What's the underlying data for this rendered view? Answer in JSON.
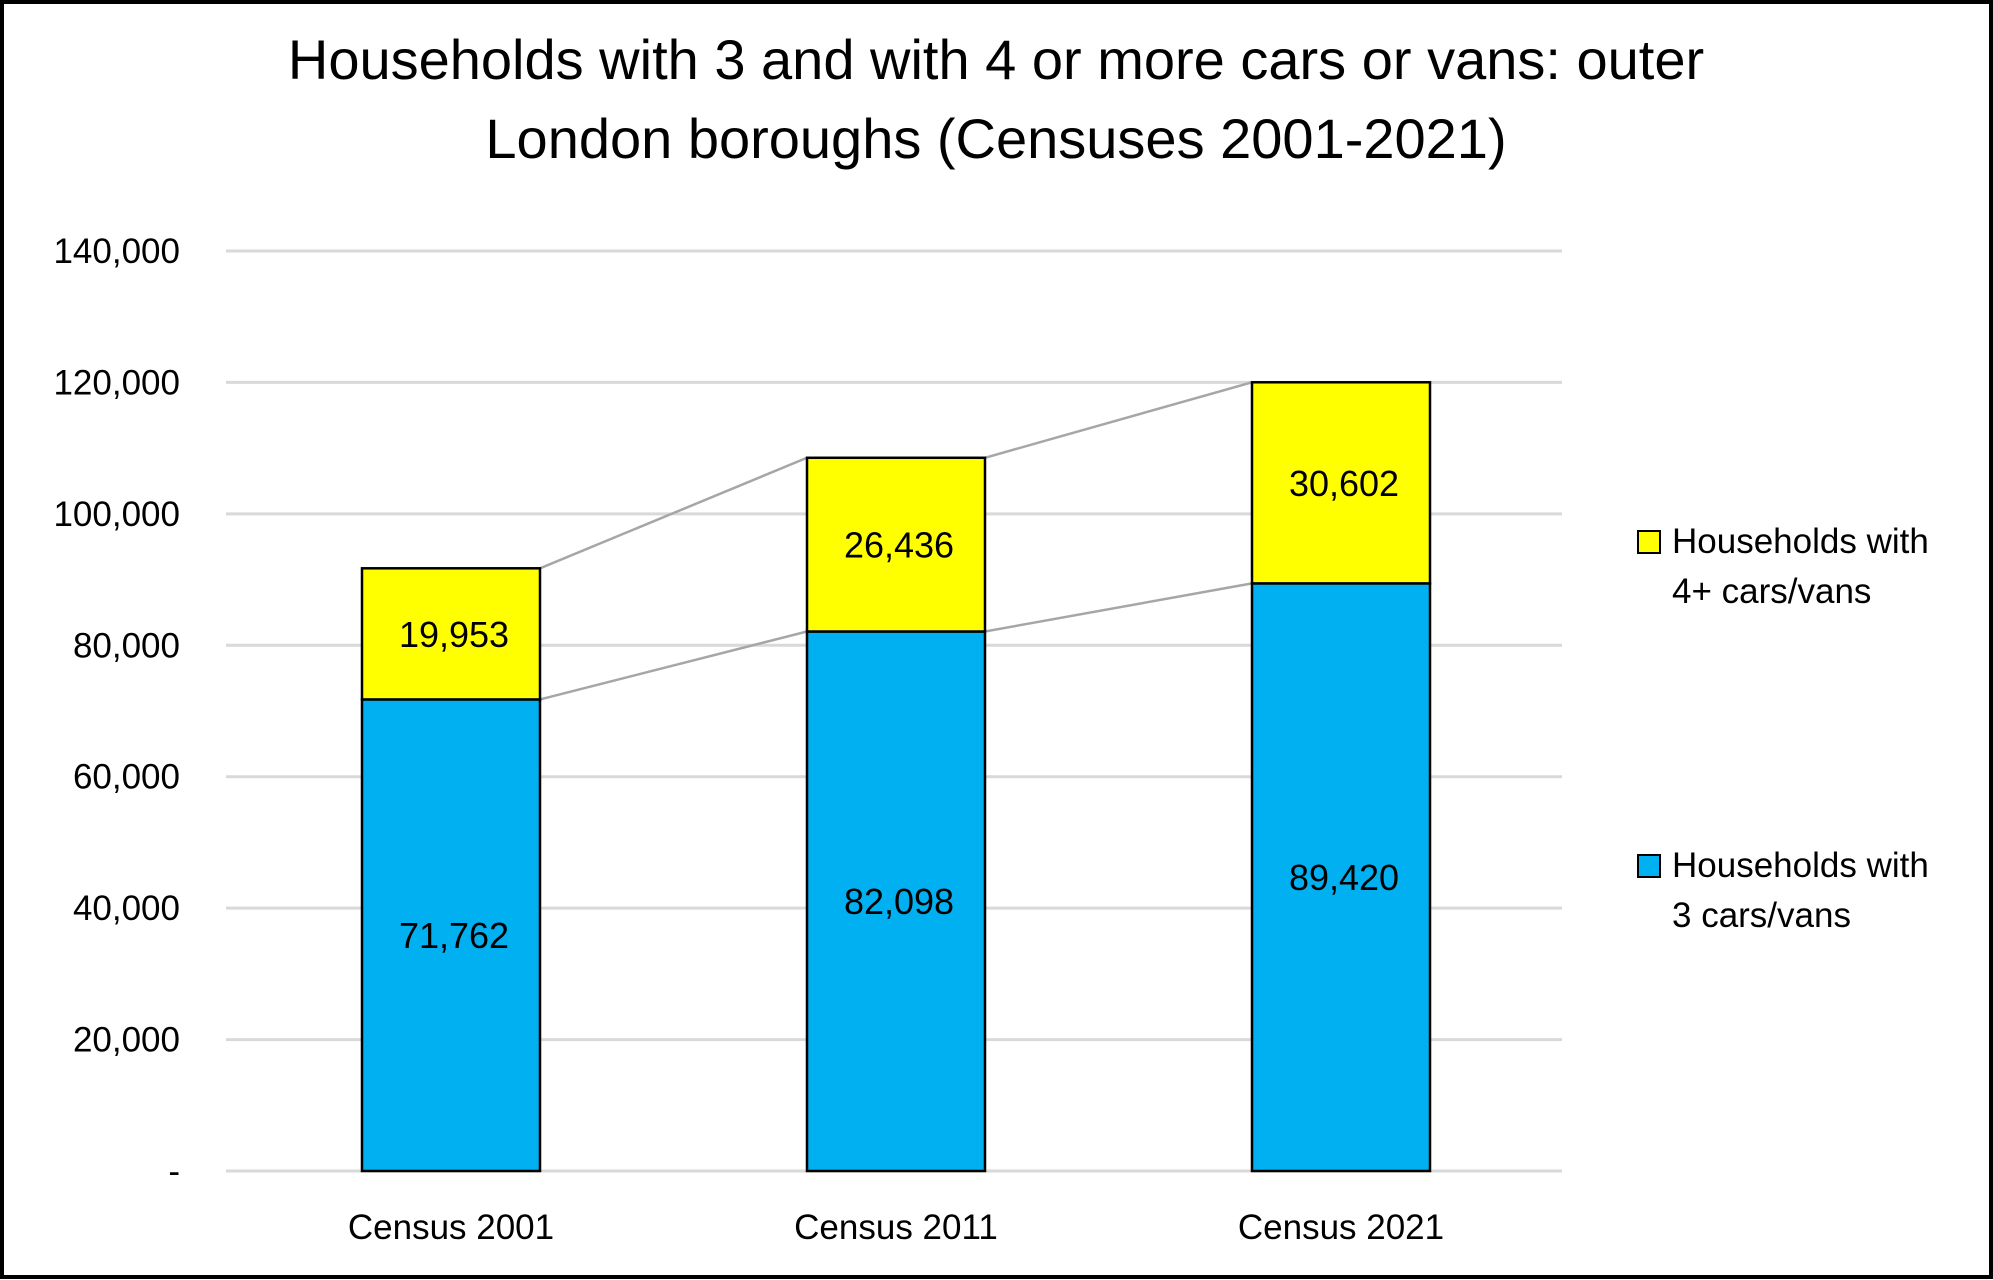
{
  "chart_data": {
    "type": "bar",
    "stacked": true,
    "title_lines": [
      "Households with 3 and with 4 or more cars or vans: outer",
      "London boroughs (Censuses 2001-2021)"
    ],
    "categories": [
      "Census 2001",
      "Census 2011",
      "Census 2021"
    ],
    "series": [
      {
        "name": "Households with 3 cars/vans",
        "legend_lines": [
          "Households with",
          "3 cars/vans"
        ],
        "values": [
          71762,
          82098,
          89420
        ],
        "labels": [
          "71,762",
          "82,098",
          "89,420"
        ],
        "color": "#00B0F0"
      },
      {
        "name": "Households with 4+ cars/vans",
        "legend_lines": [
          "Households with",
          "4+ cars/vans"
        ],
        "values": [
          19953,
          26436,
          30602
        ],
        "labels": [
          "19,953",
          "26,436",
          "30,602"
        ],
        "color": "#FFFF00"
      }
    ],
    "ylim": [
      0,
      140000
    ],
    "yticks": [
      0,
      20000,
      40000,
      60000,
      80000,
      100000,
      120000,
      140000
    ],
    "ytick_labels": [
      "-",
      "20,000",
      "40,000",
      "60,000",
      "80,000",
      "100,000",
      "120,000",
      "140,000"
    ],
    "grid": true,
    "series_lines": true,
    "legend_position": "right",
    "xlabel": "",
    "ylabel": ""
  }
}
